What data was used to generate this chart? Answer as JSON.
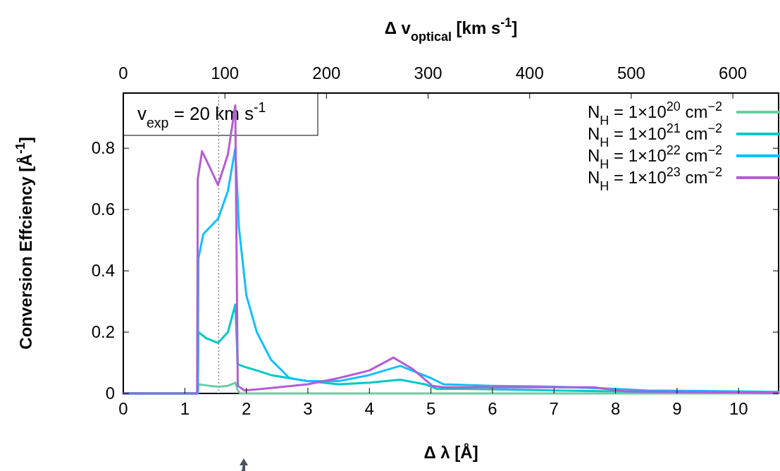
{
  "chart_data": {
    "type": "line",
    "xlabel": "Δ λ [Å]",
    "ylabel": "Conversion Effciency [Å$^{-1}$]",
    "x2label": "Δ v$_{optical}$ [km s$^{-1}$]",
    "xlim": [
      0,
      10.65
    ],
    "xticks": [
      0,
      1,
      2,
      3,
      4,
      5,
      6,
      7,
      8,
      9,
      10
    ],
    "x2lim": [
      0,
      645
    ],
    "x2ticks": [
      0,
      100,
      200,
      300,
      400,
      500,
      600
    ],
    "ylim": [
      0,
      0.98
    ],
    "yticks": [
      0,
      0.2,
      0.4,
      0.6,
      0.8
    ],
    "grid": false,
    "legend": "top right",
    "line_style": "solid",
    "ref_lines": [
      {
        "axis": "x",
        "value": 1.55,
        "color": "#888888",
        "line_style": "dotted"
      }
    ],
    "annotations": [
      "v$_{exp}$ = 20 km s$^{-1}$"
    ],
    "series": [
      {
        "name": "N$_{H}$ = 1×10$^{20}$ cm$^{−2}$",
        "color": "#6ccca4",
        "x": [
          0,
          1.21,
          1.22,
          1.4,
          1.55,
          1.7,
          1.82,
          1.86,
          1.9,
          3,
          5,
          7,
          9,
          10.65
        ],
        "values": [
          0,
          0,
          0.03,
          0.025,
          0.022,
          0.025,
          0.035,
          0.01,
          0,
          0,
          0,
          0,
          0,
          0
        ]
      },
      {
        "name": "N$_{H}$ = 1×10$^{21}$ cm$^{−2}$",
        "color": "#00c8c8",
        "x": [
          0,
          1.21,
          1.22,
          1.35,
          1.54,
          1.7,
          1.82,
          1.86,
          2.0,
          2.17,
          2.4,
          2.7,
          3.0,
          3.5,
          4.0,
          4.5,
          4.9,
          5.1,
          5.5,
          7,
          8.5,
          10.65
        ],
        "values": [
          0,
          0,
          0.2,
          0.18,
          0.165,
          0.2,
          0.29,
          0.095,
          0.085,
          0.075,
          0.06,
          0.05,
          0.04,
          0.03,
          0.035,
          0.045,
          0.03,
          0.015,
          0.015,
          0.01,
          0.005,
          0.003
        ]
      },
      {
        "name": "N$_{H}$ = 1×10$^{22}$ cm$^{−2}$",
        "color": "#10bfff",
        "x": [
          0,
          1.21,
          1.22,
          1.3,
          1.54,
          1.7,
          1.82,
          1.88,
          2.0,
          2.17,
          2.4,
          2.7,
          3.0,
          3.5,
          4.0,
          4.5,
          5.0,
          5.2,
          6,
          7,
          8,
          8.5,
          10.65
        ],
        "values": [
          0,
          0,
          0.44,
          0.52,
          0.57,
          0.66,
          0.8,
          0.54,
          0.32,
          0.2,
          0.11,
          0.05,
          0.04,
          0.04,
          0.06,
          0.09,
          0.05,
          0.03,
          0.025,
          0.022,
          0.015,
          0.01,
          0.005
        ]
      },
      {
        "name": "N$_{H}$ = 1×10$^{23}$ cm$^{−2}$",
        "color": "#b65bd6",
        "x": [
          0,
          1.2,
          1.21,
          1.28,
          1.4,
          1.54,
          1.7,
          1.82,
          1.86,
          1.97,
          2.32,
          3.0,
          3.5,
          4.0,
          4.39,
          4.7,
          5.02,
          5.2,
          6,
          7,
          7.64,
          8.17,
          9,
          10.65
        ],
        "values": [
          0,
          0,
          0.7,
          0.79,
          0.74,
          0.68,
          0.78,
          0.94,
          0.025,
          0.01,
          0.016,
          0.03,
          0.05,
          0.075,
          0.117,
          0.08,
          0.025,
          0.02,
          0.02,
          0.02,
          0.02,
          0.007,
          0.005,
          0.002
        ]
      }
    ]
  }
}
